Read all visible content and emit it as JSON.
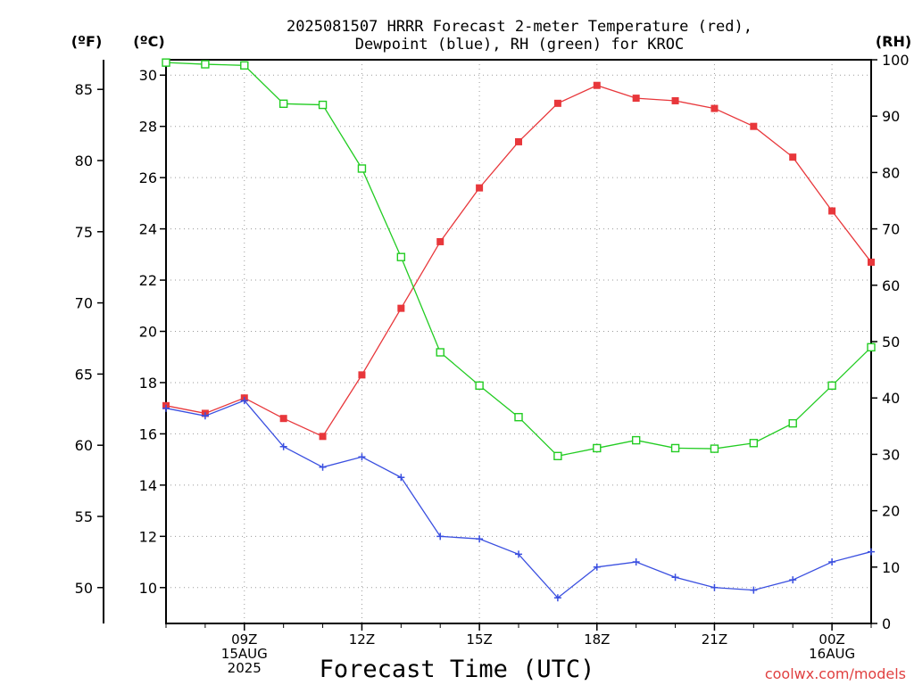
{
  "chart_data": {
    "type": "line",
    "title_lines": [
      "2025081507 HRRR Forecast 2-meter Temperature (red),",
      "Dewpoint (blue), RH (green) for KROC"
    ],
    "units": {
      "fahrenheit": "(ºF)",
      "celsius": "(ºC)",
      "rh": "(RH)"
    },
    "xlabel": "Forecast Time (UTC)",
    "credit": "coolwx.com/models",
    "x_hours": [
      7,
      8,
      9,
      10,
      11,
      12,
      13,
      14,
      15,
      16,
      17,
      18,
      19,
      20,
      21,
      22,
      23,
      24,
      25
    ],
    "xlim": [
      7,
      25
    ],
    "x_tick_labels": [
      {
        "hour": 9,
        "lines": [
          "09Z",
          "15AUG",
          "2025"
        ]
      },
      {
        "hour": 12,
        "lines": [
          "12Z"
        ]
      },
      {
        "hour": 15,
        "lines": [
          "15Z"
        ]
      },
      {
        "hour": 18,
        "lines": [
          "18Z"
        ]
      },
      {
        "hour": 21,
        "lines": [
          "21Z"
        ]
      },
      {
        "hour": 24,
        "lines": [
          "00Z",
          "16AUG"
        ]
      }
    ],
    "ylim_celsius": [
      8.6,
      30.6
    ],
    "ylim_rh": [
      0,
      100
    ],
    "celsius_ticks": [
      10,
      12,
      14,
      16,
      18,
      20,
      22,
      24,
      26,
      28,
      30
    ],
    "fahrenheit_ticks": [
      50,
      55,
      60,
      65,
      70,
      75,
      80,
      85
    ],
    "rh_ticks": [
      0,
      10,
      20,
      30,
      40,
      50,
      60,
      70,
      80,
      90,
      100
    ],
    "grid": true,
    "series": [
      {
        "name": "Temperature",
        "unit": "C",
        "axis": "celsius",
        "color": "#e8373b",
        "marker": "filled-square",
        "values": [
          17.1,
          16.8,
          17.4,
          16.6,
          15.9,
          18.3,
          20.9,
          23.5,
          25.6,
          27.4,
          28.9,
          29.6,
          29.1,
          29.0,
          28.7,
          28.0,
          26.8,
          24.7,
          22.7
        ]
      },
      {
        "name": "Dewpoint",
        "unit": "C",
        "axis": "celsius",
        "color": "#3a4fe0",
        "marker": "plus",
        "values": [
          17.0,
          16.7,
          17.3,
          15.5,
          14.7,
          15.1,
          14.3,
          12.0,
          11.9,
          11.3,
          9.6,
          10.8,
          11.0,
          10.4,
          10.0,
          9.9,
          10.3,
          11.0,
          11.4
        ]
      },
      {
        "name": "RH",
        "unit": "%",
        "axis": "rh",
        "color": "#22cc22",
        "marker": "open-square",
        "values": [
          99.5,
          99.2,
          99.0,
          92.2,
          92.0,
          80.7,
          65.0,
          48.1,
          42.2,
          36.6,
          29.7,
          31.1,
          32.5,
          31.1,
          31.0,
          32.0,
          35.5,
          42.2,
          49.0
        ]
      }
    ]
  }
}
